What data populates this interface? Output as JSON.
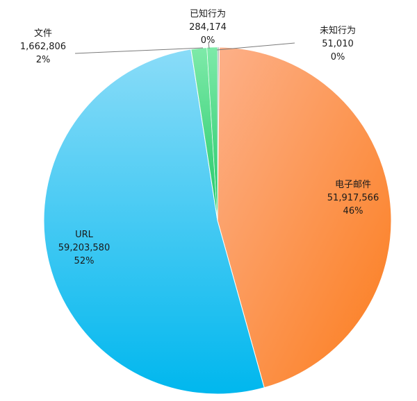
{
  "chart_data": {
    "type": "pie",
    "slices": [
      {
        "label": "未知行为",
        "value": 51010,
        "display": "51,010",
        "percent": "0%",
        "color": "#b8b8b8"
      },
      {
        "label": "电子邮件",
        "value": 51917566,
        "display": "51,917,566",
        "percent": "46%",
        "color": "#f98a3c"
      },
      {
        "label": "URL",
        "value": 59203580,
        "display": "59,203,580",
        "percent": "52%",
        "color": "#19b8ee"
      },
      {
        "label": "文件",
        "value": 1662806,
        "display": "1,662,806",
        "percent": "2%",
        "color": "#39d67e"
      },
      {
        "label": "已知行为",
        "value": 284174,
        "display": "284,174",
        "percent": "0%",
        "color": "#39d67e"
      }
    ],
    "legend": "none",
    "labels_position": "slice labels with leader lines"
  }
}
